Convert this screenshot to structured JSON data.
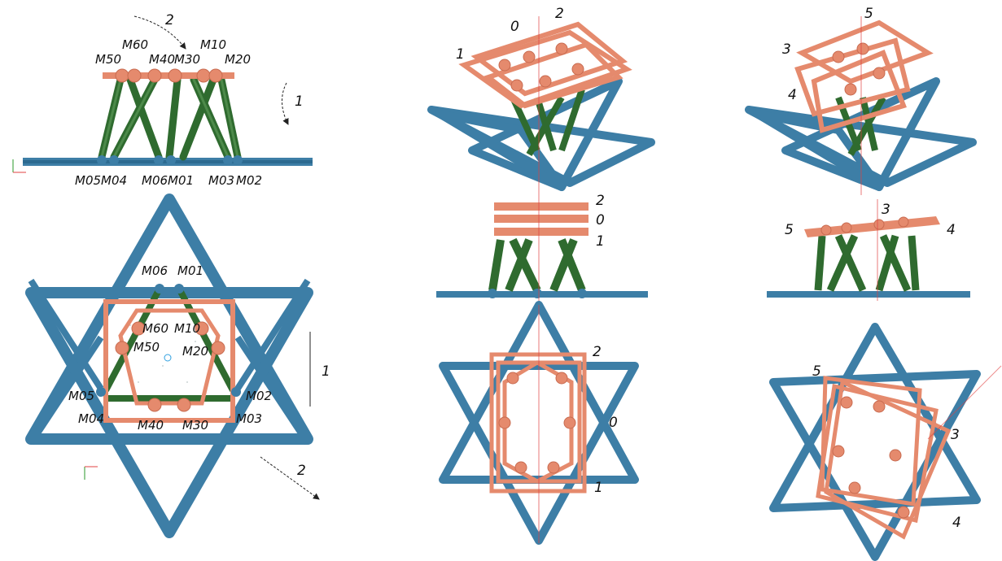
{
  "colors": {
    "base": "#3d7ea6",
    "base_dark": "#2c6a90",
    "platform": "#e58a6d",
    "platform_dark": "#c86b50",
    "leg": "#2f6b2f",
    "leg_light": "#4d8a4a",
    "axis_red": "#e04040",
    "arrow": "#222222"
  },
  "left_side": {
    "top_labels": [
      "M50",
      "M60",
      "M40",
      "M30",
      "M10",
      "M20"
    ],
    "bottom_labels": [
      "M05",
      "M04",
      "M06",
      "M01",
      "M03",
      "M02"
    ],
    "arrow_labels": [
      "2",
      "1"
    ]
  },
  "left_top_view": {
    "labels": [
      "M06",
      "M01",
      "M60",
      "M10",
      "M50",
      "M20",
      "M05",
      "M02",
      "M04",
      "M03",
      "M40",
      "M30"
    ],
    "arrow_labels": [
      "1",
      "2"
    ]
  },
  "middle": {
    "iso_labels": [
      "0",
      "2",
      "1"
    ],
    "side_labels": [
      "2",
      "0",
      "1"
    ],
    "top_labels": [
      "2",
      "0",
      "1"
    ]
  },
  "right": {
    "iso_labels": [
      "5",
      "3",
      "4"
    ],
    "side_labels": [
      "3",
      "5",
      "4"
    ],
    "top_labels": [
      "5",
      "3",
      "4"
    ]
  }
}
